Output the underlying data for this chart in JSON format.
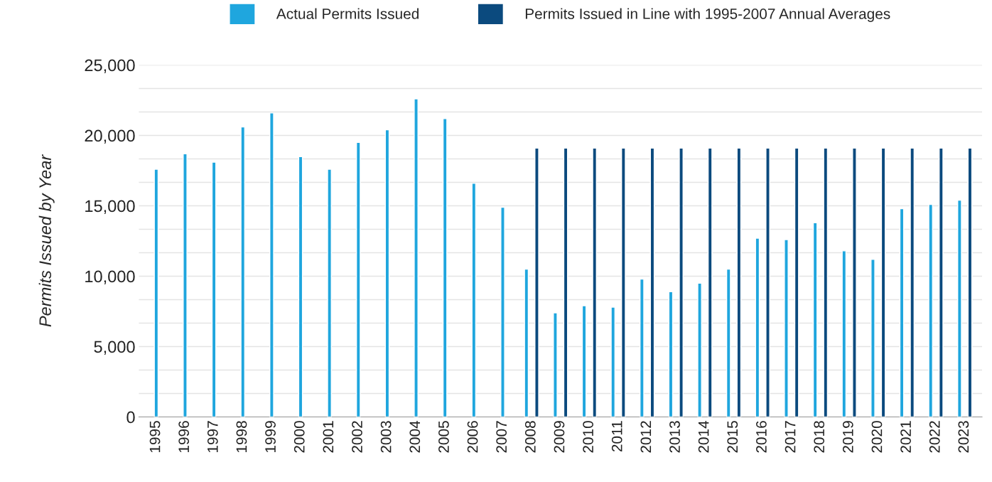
{
  "chart_data": {
    "type": "bar",
    "categories": [
      "1995",
      "1996",
      "1997",
      "1998",
      "1999",
      "2000",
      "2001",
      "2002",
      "2003",
      "2004",
      "2005",
      "2006",
      "2007",
      "2008",
      "2009",
      "2010",
      "2011",
      "2012",
      "2013",
      "2014",
      "2015",
      "2016",
      "2017",
      "2018",
      "2019",
      "2020",
      "2021",
      "2022",
      "2023"
    ],
    "series": [
      {
        "name": "Actual Permits Issued",
        "color": "#1fa6de",
        "values": [
          17600,
          18700,
          18100,
          20600,
          21600,
          18500,
          17600,
          19500,
          20400,
          22600,
          21200,
          16600,
          14900,
          10500,
          7400,
          7900,
          7800,
          9800,
          8900,
          9500,
          10500,
          12700,
          12600,
          13800,
          11800,
          11200,
          14800,
          15100,
          15400
        ]
      },
      {
        "name": "Permits Issued in Line with 1995-2007 Annual Averages",
        "color": "#0b4a7e",
        "values": [
          null,
          null,
          null,
          null,
          null,
          null,
          null,
          null,
          null,
          null,
          null,
          null,
          null,
          19100,
          19100,
          19100,
          19100,
          19100,
          19100,
          19100,
          19100,
          19100,
          19100,
          19100,
          19100,
          19100,
          19100,
          19100,
          19100
        ]
      }
    ],
    "ylabel": "Permits Issued by Year",
    "ylim": [
      0,
      25000
    ],
    "yticks": [
      0,
      {
        "value": 1667,
        "label": null
      },
      {
        "value": 3333,
        "label": null
      },
      {
        "value": 5000,
        "label": "5,000"
      },
      {
        "value": 6667,
        "label": null
      },
      {
        "value": 8333,
        "label": null
      },
      {
        "value": 10000,
        "label": "10,000"
      },
      {
        "value": 11667,
        "label": null
      },
      {
        "value": 13333,
        "label": null
      },
      {
        "value": 15000,
        "label": "15,000"
      },
      {
        "value": 16667,
        "label": null
      },
      {
        "value": 18333,
        "label": null
      },
      {
        "value": 20000,
        "label": "20,000"
      },
      {
        "value": 21667,
        "label": null
      },
      {
        "value": 23333,
        "label": null
      },
      {
        "value": 25000,
        "label": "25,000"
      }
    ],
    "grid": "y",
    "legend": "top"
  }
}
